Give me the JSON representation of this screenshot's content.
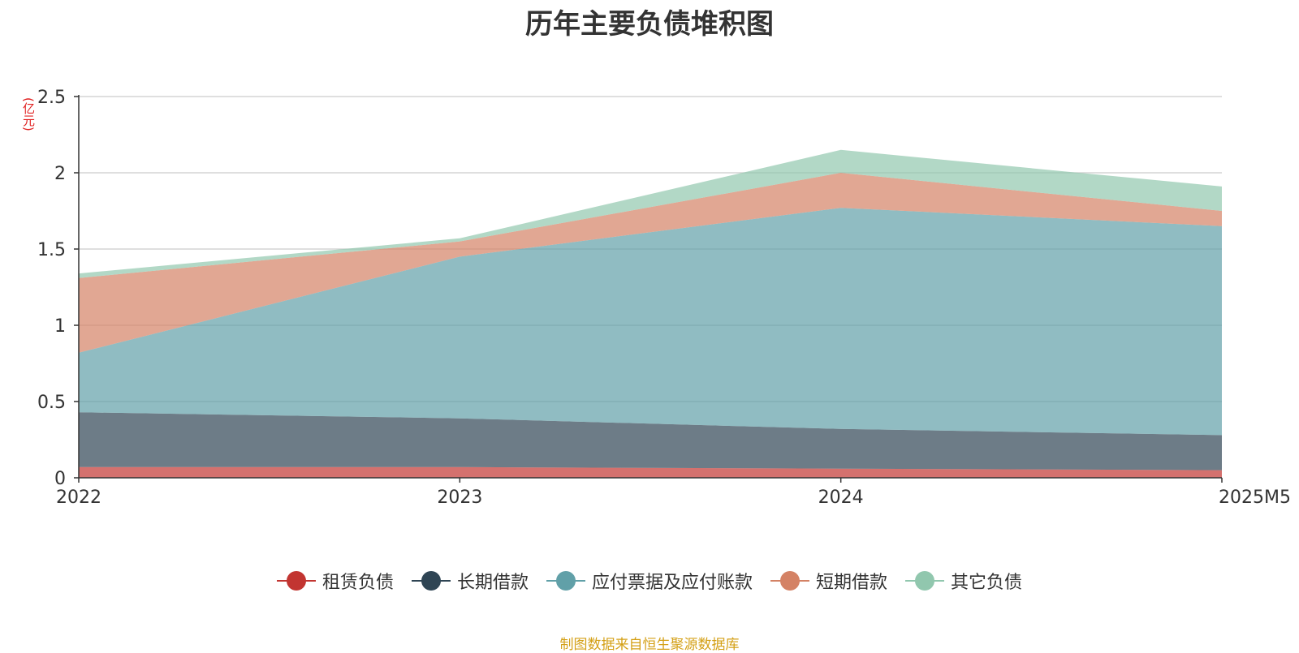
{
  "chart_data": {
    "type": "area",
    "stacked": true,
    "title": "历年主要负债堆积图",
    "unit_label": "(亿元)",
    "categories": [
      "2022",
      "2023",
      "2024",
      "2025M5"
    ],
    "ylim": [
      0,
      2.5
    ],
    "yticks": [
      "0",
      "0.5",
      "1",
      "1.5",
      "2",
      "2.5"
    ],
    "grid": true,
    "legend_position": "bottom",
    "series": [
      {
        "name": "租赁负债",
        "values": [
          0.07,
          0.07,
          0.06,
          0.05
        ],
        "color": "#c23531"
      },
      {
        "name": "长期借款",
        "values": [
          0.36,
          0.32,
          0.26,
          0.23
        ],
        "color": "#2f4554"
      },
      {
        "name": "应付票据及应付账款",
        "values": [
          0.39,
          1.06,
          1.45,
          1.37
        ],
        "color": "#61a0a8"
      },
      {
        "name": "短期借款",
        "values": [
          0.49,
          0.1,
          0.23,
          0.1
        ],
        "color": "#d48265"
      },
      {
        "name": "其它负债",
        "values": [
          0.03,
          0.02,
          0.15,
          0.16
        ],
        "color": "#91c7ae"
      }
    ]
  },
  "footer": {
    "source": "制图数据来自恒生聚源数据库"
  }
}
